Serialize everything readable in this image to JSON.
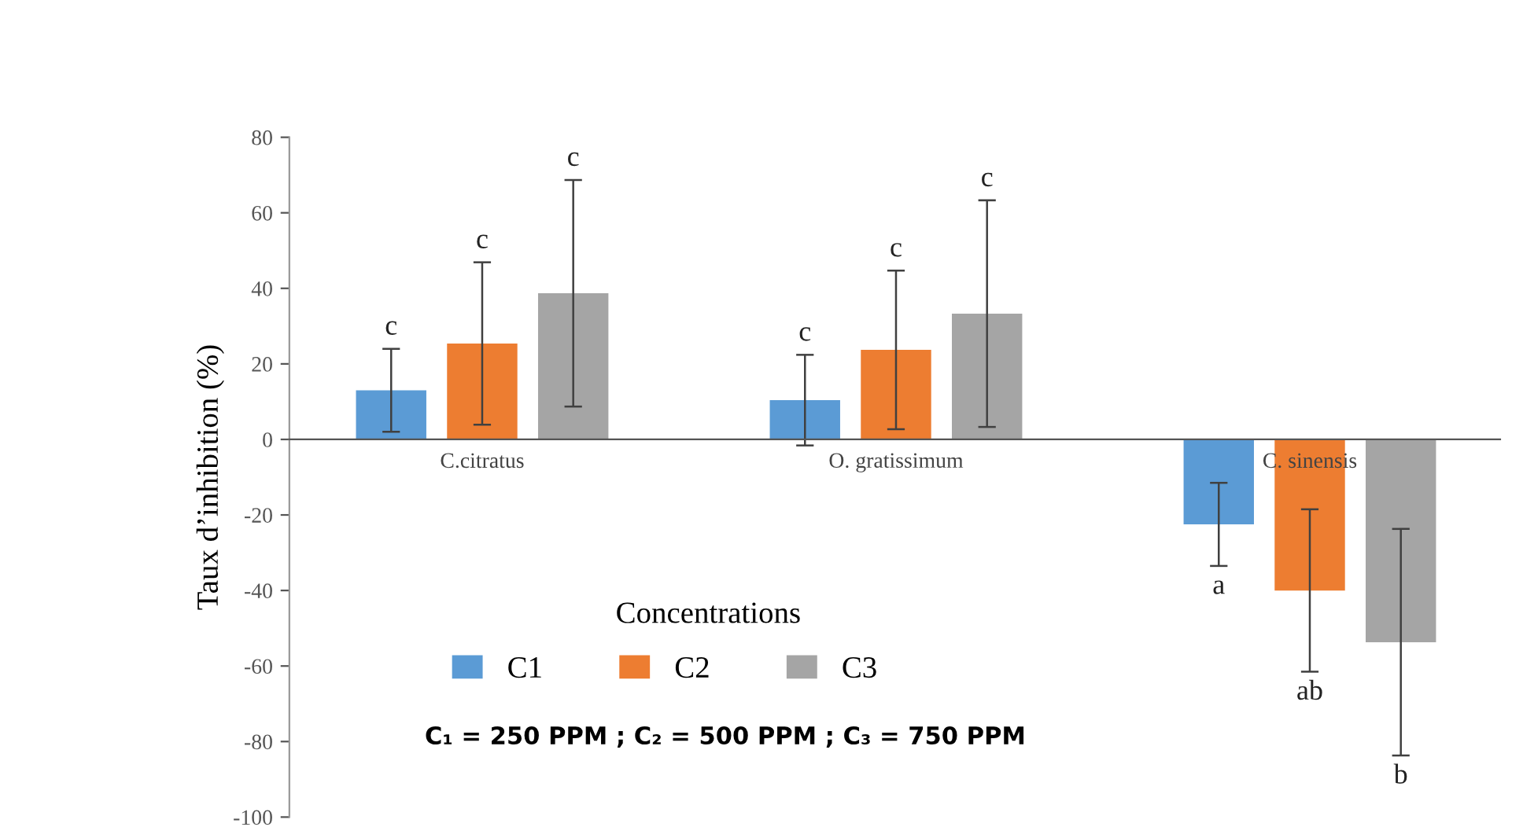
{
  "chart_data": {
    "type": "bar",
    "categories": [
      "C.citratus",
      "O. gratissimum",
      "C. sinensis"
    ],
    "xlabel": "Concentrations",
    "ylabel": "Taux d’inhibition (%)",
    "ylim": [
      -100,
      80
    ],
    "yticks": [
      -100,
      -80,
      -60,
      -40,
      -20,
      0,
      20,
      40,
      60,
      80
    ],
    "grid": false,
    "legend": "bottom",
    "series": [
      {
        "name": "C1",
        "color": "#5b9bd5",
        "values": [
          13,
          10.4,
          -22.5
        ],
        "errors": [
          11,
          12,
          11
        ]
      },
      {
        "name": "C2",
        "color": "#ed7d31",
        "values": [
          25.4,
          23.7,
          -40
        ],
        "errors": [
          21.5,
          21,
          21.5
        ]
      },
      {
        "name": "C3",
        "color": "#a5a5a5",
        "values": [
          38.7,
          33.3,
          -53.7
        ],
        "errors": [
          30,
          30,
          30
        ]
      }
    ],
    "annotations": [
      "c",
      "c",
      "c",
      "c",
      "c",
      "c",
      "a",
      "ab",
      "b",
      "C₁ = 250 PPM ; C₂ = 500 PPM ; C₃ = 750 PPM"
    ]
  }
}
